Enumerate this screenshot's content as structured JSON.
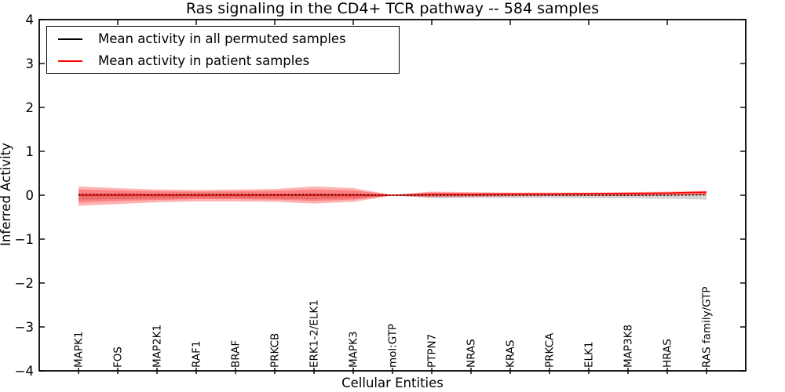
{
  "title": "Ras signaling in the CD4+ TCR pathway -- 584 samples",
  "legend": {
    "items": [
      {
        "label": "Mean activity in all permuted samples",
        "color": "#000000"
      },
      {
        "label": "Mean activity in patient samples",
        "color": "#ff0000"
      }
    ]
  },
  "chart_data": {
    "type": "line",
    "title": "Ras signaling in the CD4+ TCR pathway -- 584 samples",
    "xlabel": "Cellular Entities",
    "ylabel": "Inferred Activity",
    "ylim": [
      -4,
      4
    ],
    "ytick_values": [
      4,
      3,
      2,
      1,
      0,
      -1,
      -2,
      -3,
      -4
    ],
    "ytick_labels": [
      "4",
      "3",
      "2",
      "1",
      "0",
      "−1",
      "−2",
      "−3",
      "−4"
    ],
    "categories": [
      "MAPK1",
      "FOS",
      "MAP2K1",
      "RAF1",
      "BRAF",
      "PRKCB",
      "ERK1-2/ELK1",
      "MAPK3",
      "mol:GTP",
      "PTPN7",
      "NRAS",
      "KRAS",
      "PRKCA",
      "ELK1",
      "MAP3K8",
      "HRAS",
      "RAS family/GTP"
    ],
    "grid": false,
    "legend_position": "upper left",
    "frame_color": "#000000",
    "series": [
      {
        "name": "Mean activity in all permuted samples",
        "color": "#000000",
        "style": "dotted",
        "values": [
          0.01,
          0.01,
          0.01,
          0.01,
          0.01,
          0.01,
          0.01,
          0.01,
          0.0,
          0.0,
          0.0,
          0.0,
          0.0,
          0.0,
          0.0,
          0.0,
          0.01
        ]
      },
      {
        "name": "Mean activity in patient samples",
        "color": "#ff0000",
        "style": "solid",
        "values": [
          0.0,
          0.0,
          0.0,
          0.0,
          0.0,
          0.0,
          0.0,
          0.0,
          0.0,
          0.02,
          0.02,
          0.03,
          0.03,
          0.04,
          0.04,
          0.05,
          0.07
        ]
      }
    ],
    "bands": [
      {
        "name": "permuted-samples-band",
        "color": "#aaaaaa",
        "opacity": 0.5,
        "upper": [
          0.05,
          0.05,
          0.04,
          0.04,
          0.04,
          0.04,
          0.05,
          0.04,
          0.01,
          0.02,
          0.02,
          0.02,
          0.02,
          0.02,
          0.02,
          0.03,
          0.04
        ],
        "lower": [
          -0.1,
          -0.09,
          -0.08,
          -0.07,
          -0.07,
          -0.08,
          -0.09,
          -0.07,
          -0.01,
          -0.06,
          -0.06,
          -0.06,
          -0.06,
          -0.07,
          -0.07,
          -0.08,
          -0.1
        ]
      },
      {
        "name": "patient-samples-outer-band",
        "color": "#ff0000",
        "opacity": 0.3,
        "upper": [
          0.2,
          0.16,
          0.13,
          0.12,
          0.13,
          0.14,
          0.2,
          0.16,
          0.01,
          0.08,
          0.07,
          0.06,
          0.06,
          0.06,
          0.07,
          0.08,
          0.1
        ],
        "lower": [
          -0.24,
          -0.2,
          -0.16,
          -0.14,
          -0.14,
          -0.15,
          -0.19,
          -0.15,
          -0.01,
          -0.05,
          -0.04,
          -0.03,
          -0.02,
          -0.02,
          -0.02,
          -0.01,
          0.0
        ]
      },
      {
        "name": "patient-samples-inner-band",
        "color": "#ff0000",
        "opacity": 0.28,
        "upper": [
          0.13,
          0.11,
          0.09,
          0.08,
          0.09,
          0.1,
          0.13,
          0.11,
          0.01,
          0.06,
          0.05,
          0.05,
          0.05,
          0.05,
          0.06,
          0.06,
          0.09
        ],
        "lower": [
          -0.16,
          -0.13,
          -0.11,
          -0.09,
          -0.09,
          -0.1,
          -0.13,
          -0.1,
          -0.01,
          -0.03,
          -0.02,
          -0.01,
          -0.01,
          -0.01,
          -0.01,
          0.0,
          0.02
        ]
      }
    ]
  }
}
